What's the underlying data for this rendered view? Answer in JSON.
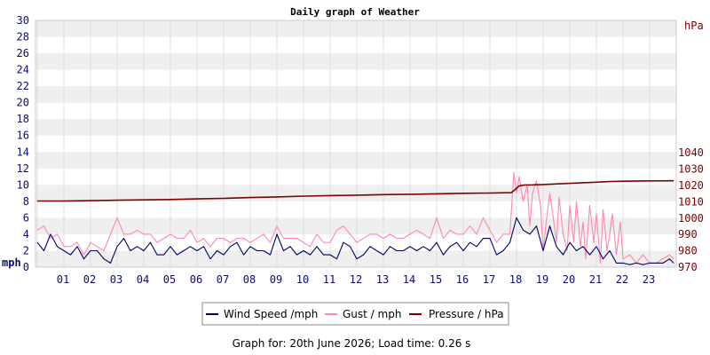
{
  "chart_data": {
    "type": "line",
    "title": "Daily graph of Weather",
    "x_ticks": [
      "01",
      "02",
      "03",
      "04",
      "05",
      "06",
      "07",
      "08",
      "09",
      "10",
      "11",
      "12",
      "13",
      "14",
      "15",
      "16",
      "17",
      "18",
      "19",
      "20",
      "21",
      "22",
      "23"
    ],
    "left_axis": {
      "label": "mph",
      "ylim": [
        0,
        30
      ],
      "ticks": [
        "0",
        "2",
        "4",
        "6",
        "8",
        "10",
        "12",
        "14",
        "16",
        "18",
        "20",
        "22",
        "24",
        "26",
        "28",
        "30"
      ]
    },
    "right_axis": {
      "label": "hPa",
      "ylim": [
        970,
        1045
      ],
      "ticks": [
        "970",
        "980",
        "990",
        "1000",
        "1010",
        "1020",
        "1030",
        "1040"
      ]
    },
    "grid": true,
    "legend_position": "bottom",
    "colors": {
      "wind": "#000066",
      "gust": "#ff88aa",
      "pressure": "#800000",
      "band": "#efefef",
      "grid": "#cfcfcf"
    },
    "series": [
      {
        "name": "Wind Speed /mph",
        "axis": "left",
        "x": [
          0.0,
          0.25,
          0.5,
          0.75,
          1.0,
          1.25,
          1.5,
          1.75,
          2.0,
          2.25,
          2.5,
          2.75,
          3.0,
          3.25,
          3.5,
          3.75,
          4.0,
          4.25,
          4.5,
          4.75,
          5.0,
          5.25,
          5.5,
          5.75,
          6.0,
          6.25,
          6.5,
          6.75,
          7.0,
          7.25,
          7.5,
          7.75,
          8.0,
          8.25,
          8.5,
          8.75,
          9.0,
          9.25,
          9.5,
          9.75,
          10.0,
          10.25,
          10.5,
          10.75,
          11.0,
          11.25,
          11.5,
          11.75,
          12.0,
          12.25,
          12.5,
          12.75,
          13.0,
          13.25,
          13.5,
          13.75,
          14.0,
          14.25,
          14.5,
          14.75,
          15.0,
          15.25,
          15.5,
          15.75,
          16.0,
          16.25,
          16.5,
          16.75,
          17.0,
          17.25,
          17.5,
          17.75,
          18.0,
          18.25,
          18.5,
          18.75,
          19.0,
          19.25,
          19.5,
          19.75,
          20.0,
          20.25,
          20.5,
          20.75,
          21.0,
          21.25,
          21.5,
          21.75,
          22.0,
          22.25,
          22.5,
          22.75,
          23.0,
          23.25,
          23.5,
          23.75,
          23.9
        ],
        "values": [
          3.0,
          2.0,
          4.0,
          2.5,
          2.0,
          1.5,
          2.5,
          1.0,
          2.0,
          2.0,
          1.0,
          0.5,
          2.5,
          3.5,
          2.0,
          2.5,
          2.0,
          3.0,
          1.5,
          1.5,
          2.5,
          1.5,
          2.0,
          2.5,
          2.0,
          2.5,
          1.0,
          2.0,
          1.5,
          2.5,
          3.0,
          1.5,
          2.5,
          2.0,
          2.0,
          1.5,
          4.0,
          2.0,
          2.5,
          1.5,
          2.0,
          1.5,
          2.5,
          1.5,
          1.5,
          1.0,
          3.0,
          2.5,
          1.0,
          1.5,
          2.5,
          2.0,
          1.5,
          2.5,
          2.0,
          2.0,
          2.5,
          2.0,
          2.5,
          2.0,
          3.0,
          1.5,
          2.5,
          3.0,
          2.0,
          3.0,
          2.5,
          3.5,
          3.5,
          1.5,
          2.0,
          3.0,
          6.0,
          4.5,
          4.0,
          5.0,
          2.0,
          5.0,
          2.5,
          1.5,
          3.0,
          2.0,
          2.5,
          1.5,
          2.5,
          1.0,
          2.0,
          0.5,
          0.5,
          0.3,
          0.5,
          0.3,
          0.5,
          0.5,
          0.5,
          1.0,
          0.5
        ],
        "color_key": "wind"
      },
      {
        "name": "Gust / mph",
        "axis": "left",
        "x": [
          0.0,
          0.25,
          0.5,
          0.75,
          1.0,
          1.25,
          1.5,
          1.75,
          2.0,
          2.25,
          2.5,
          2.75,
          3.0,
          3.25,
          3.5,
          3.75,
          4.0,
          4.25,
          4.5,
          4.75,
          5.0,
          5.25,
          5.5,
          5.75,
          6.0,
          6.25,
          6.5,
          6.75,
          7.0,
          7.25,
          7.5,
          7.75,
          8.0,
          8.25,
          8.5,
          8.75,
          9.0,
          9.25,
          9.5,
          9.75,
          10.0,
          10.25,
          10.5,
          10.75,
          11.0,
          11.25,
          11.5,
          11.75,
          12.0,
          12.25,
          12.5,
          12.75,
          13.0,
          13.25,
          13.5,
          13.75,
          14.0,
          14.25,
          14.5,
          14.75,
          15.0,
          15.25,
          15.5,
          15.75,
          16.0,
          16.25,
          16.5,
          16.75,
          17.0,
          17.25,
          17.5,
          17.75,
          17.9,
          18.0,
          18.1,
          18.25,
          18.4,
          18.5,
          18.6,
          18.75,
          18.9,
          19.0,
          19.15,
          19.25,
          19.4,
          19.5,
          19.6,
          19.75,
          19.9,
          20.0,
          20.15,
          20.25,
          20.4,
          20.5,
          20.6,
          20.75,
          20.9,
          21.0,
          21.15,
          21.25,
          21.4,
          21.5,
          21.6,
          21.75,
          21.9,
          22.0,
          22.25,
          22.5,
          22.75,
          23.0,
          23.25,
          23.5,
          23.75,
          23.9
        ],
        "values": [
          4.5,
          5.0,
          3.5,
          4.0,
          2.5,
          2.5,
          3.0,
          1.5,
          3.0,
          2.5,
          2.0,
          4.0,
          6.0,
          4.0,
          4.0,
          4.5,
          4.0,
          4.0,
          3.0,
          3.5,
          4.0,
          3.5,
          3.5,
          4.5,
          3.0,
          3.5,
          2.5,
          3.5,
          3.5,
          3.0,
          3.5,
          3.5,
          3.0,
          3.5,
          4.0,
          3.0,
          5.0,
          3.5,
          3.5,
          3.5,
          3.0,
          2.5,
          4.0,
          3.0,
          3.0,
          4.5,
          5.0,
          4.0,
          3.0,
          3.5,
          4.0,
          4.0,
          3.5,
          4.0,
          3.5,
          3.5,
          4.0,
          4.5,
          4.0,
          3.5,
          6.0,
          3.5,
          4.5,
          4.0,
          4.0,
          5.0,
          4.0,
          6.0,
          4.5,
          3.0,
          4.0,
          4.0,
          11.5,
          9.0,
          11.0,
          8.0,
          10.0,
          5.0,
          9.0,
          10.5,
          7.5,
          2.0,
          6.5,
          9.0,
          5.5,
          3.0,
          8.5,
          4.0,
          2.0,
          7.5,
          3.0,
          8.0,
          2.5,
          5.5,
          1.0,
          7.5,
          3.0,
          6.5,
          0.5,
          7.0,
          2.0,
          4.0,
          6.5,
          1.5,
          5.5,
          1.0,
          1.5,
          0.5,
          1.5,
          0.5,
          0.5,
          1.0,
          1.5,
          1.0
        ],
        "color_key": "gust"
      },
      {
        "name": "Pressure / hPa",
        "axis": "right",
        "x": [
          0,
          1,
          2,
          3,
          4,
          5,
          6,
          7,
          8,
          9,
          10,
          11,
          12,
          13,
          14,
          15,
          16,
          17,
          17.8,
          17.95,
          18.1,
          18.3,
          18.6,
          19,
          20,
          21,
          21.5,
          22,
          23,
          23.9
        ],
        "values": [
          1010.5,
          1010.5,
          1010.7,
          1011.0,
          1011.2,
          1011.4,
          1011.8,
          1012.1,
          1012.6,
          1013.0,
          1013.5,
          1013.8,
          1014.1,
          1014.4,
          1014.6,
          1014.9,
          1015.2,
          1015.4,
          1015.6,
          1017.5,
          1019.8,
          1020.3,
          1020.4,
          1020.6,
          1021.3,
          1022.0,
          1022.4,
          1022.6,
          1022.8,
          1022.9
        ],
        "color_key": "pressure"
      }
    ]
  },
  "footer": "Graph for: 20th June 2026; Load time: 0.26 s"
}
